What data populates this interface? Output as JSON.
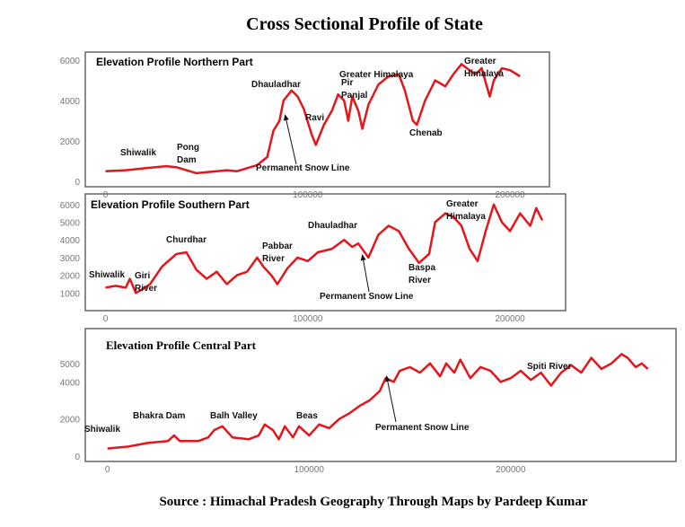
{
  "title": "Cross Sectional Profile of State",
  "source": "Source : Himachal Pradesh Geography Through Maps by Pardeep Kumar",
  "chart_data": [
    {
      "type": "line",
      "title": "Elevation Profile Northern Part",
      "color": "#e3161b",
      "xlim": [
        -10000,
        219500
      ],
      "ylim": [
        -270,
        6400
      ],
      "xticks": [
        0,
        100000,
        200000
      ],
      "yticks": [
        0,
        2000,
        4000,
        6000
      ],
      "x": [
        0,
        10000,
        20000,
        30000,
        35000,
        40000,
        45000,
        50000,
        55000,
        60000,
        65000,
        70000,
        75000,
        80000,
        83000,
        86000,
        88000,
        92000,
        95000,
        98000,
        102000,
        104000,
        108000,
        112000,
        115000,
        118000,
        120000,
        122000,
        125000,
        127000,
        130000,
        135000,
        140000,
        145000,
        148000,
        152000,
        154000,
        158000,
        163000,
        168000,
        172000,
        176000,
        180000,
        183000,
        186000,
        190000,
        192000,
        196000,
        200000,
        205000
      ],
      "values": [
        500,
        550,
        650,
        750,
        700,
        550,
        400,
        450,
        500,
        550,
        500,
        650,
        800,
        1200,
        2500,
        3000,
        4000,
        4500,
        4200,
        3600,
        2300,
        1800,
        2800,
        3500,
        4300,
        4000,
        3000,
        4200,
        3500,
        2600,
        3800,
        4800,
        5200,
        5300,
        4500,
        3000,
        2800,
        4000,
        5000,
        4700,
        5300,
        5800,
        5500,
        5300,
        5600,
        4200,
        5000,
        5600,
        5500,
        5200
      ],
      "annotations": [
        [
          "Shiwalik"
        ],
        [
          "Pong",
          "Dam"
        ],
        [
          "Dhauladhar"
        ],
        [
          "Ravi"
        ],
        [
          "Greater Himalaya"
        ],
        [
          "Pir",
          "Panjal"
        ],
        [
          "Chenab"
        ],
        [
          "Greater",
          "Himalaya"
        ],
        [
          "Permanent Snow Line"
        ]
      ]
    },
    {
      "type": "line",
      "title": "Elevation Profile Southern Part",
      "color": "#e3161b",
      "xlim": [
        -10000,
        227500
      ],
      "ylim": [
        0,
        6600
      ],
      "xticks": [
        0,
        100000,
        200000
      ],
      "yticks": [
        1000,
        2000,
        3000,
        4000,
        5000,
        6000
      ],
      "x": [
        0,
        5000,
        10000,
        12000,
        15000,
        18000,
        22000,
        28000,
        35000,
        40000,
        45000,
        50000,
        55000,
        60000,
        65000,
        70000,
        75000,
        78000,
        82000,
        85000,
        90000,
        95000,
        100000,
        105000,
        112000,
        118000,
        122000,
        125000,
        130000,
        135000,
        140000,
        145000,
        150000,
        155000,
        160000,
        163000,
        168000,
        172000,
        176000,
        180000,
        184000,
        188000,
        192000,
        196000,
        200000,
        205000,
        210000,
        213000,
        216000
      ],
      "values": [
        1300,
        1400,
        1300,
        1800,
        1000,
        1200,
        1500,
        2500,
        3200,
        3300,
        2300,
        1800,
        2200,
        1500,
        2000,
        2200,
        3000,
        2500,
        2000,
        1500,
        2400,
        3000,
        2800,
        3300,
        3500,
        4000,
        3600,
        3800,
        3000,
        4300,
        4800,
        4500,
        3500,
        2700,
        3200,
        5000,
        5500,
        5300,
        4800,
        3500,
        2800,
        4500,
        6000,
        5000,
        4500,
        5500,
        4800,
        5800,
        5100
      ],
      "annotations": [
        [
          "Shiwalik"
        ],
        [
          "Giri",
          "River"
        ],
        [
          "Churdhar"
        ],
        [
          "Pabbar",
          "River"
        ],
        [
          "Dhauladhar"
        ],
        [
          "Permanent Snow Line"
        ],
        [
          "Baspa",
          "River"
        ],
        [
          "Greater",
          "Himalaya"
        ]
      ]
    },
    {
      "type": "line",
      "title": "Elevation Profile Central Part",
      "color": "#e3161b",
      "xlim": [
        -11000,
        282000
      ],
      "ylim": [
        -300,
        6880
      ],
      "xticks": [
        0,
        100000,
        200000
      ],
      "yticks": [
        0,
        2000,
        4000,
        5000
      ],
      "x": [
        0,
        10000,
        20000,
        30000,
        33000,
        36000,
        45000,
        50000,
        53000,
        57000,
        62000,
        70000,
        75000,
        78000,
        82000,
        85000,
        88000,
        92000,
        95000,
        100000,
        105000,
        110000,
        115000,
        120000,
        125000,
        130000,
        135000,
        138000,
        142000,
        145000,
        150000,
        155000,
        160000,
        165000,
        168000,
        172000,
        175000,
        180000,
        185000,
        190000,
        195000,
        200000,
        205000,
        210000,
        215000,
        220000,
        225000,
        230000,
        235000,
        240000,
        245000,
        250000,
        255000,
        258000,
        262000,
        265000,
        268000
      ],
      "values": [
        400,
        500,
        700,
        800,
        1100,
        800,
        800,
        1000,
        1400,
        1600,
        1000,
        900,
        1100,
        1700,
        1400,
        900,
        1600,
        1000,
        1600,
        1100,
        1700,
        1500,
        2000,
        2300,
        2700,
        3000,
        3500,
        4200,
        4000,
        4600,
        4800,
        4500,
        5000,
        4300,
        5000,
        4500,
        5200,
        4200,
        4800,
        4600,
        4000,
        4200,
        4600,
        4100,
        4500,
        3800,
        4500,
        4900,
        4500,
        5300,
        4700,
        5000,
        5500,
        5300,
        4800,
        5000,
        4700
      ],
      "annotations": [
        [
          "Shiwalik"
        ],
        [
          "Bhakra Dam"
        ],
        [
          "Balh  Valley"
        ],
        [
          "Beas"
        ],
        [
          "Permanent Snow Line"
        ],
        [
          "Spiti River"
        ]
      ]
    }
  ]
}
